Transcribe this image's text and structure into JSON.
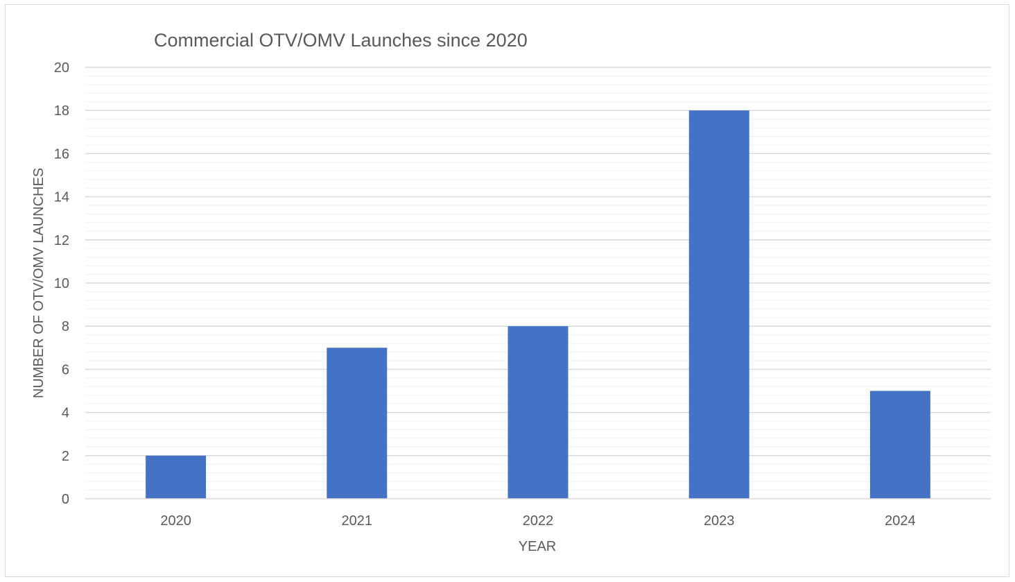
{
  "chart_data": {
    "type": "bar",
    "title": "Commercial OTV/OMV Launches since 2020",
    "xlabel": "YEAR",
    "ylabel": "NUMBER OF OTV/OMV LAUNCHES",
    "categories": [
      "2020",
      "2021",
      "2022",
      "2023",
      "2024"
    ],
    "values": [
      2,
      7,
      8,
      18,
      5
    ],
    "ylim": [
      0,
      20
    ],
    "yticks": [
      "0",
      "2",
      "4",
      "6",
      "8",
      "10",
      "12",
      "14",
      "16",
      "18",
      "20"
    ],
    "major_grid_step": 2,
    "minor_grid_step": 0.4,
    "grid": true,
    "legend": "none",
    "bar_color": "#4472C4",
    "major_grid_color": "#d9d9d9",
    "minor_grid_color": "#f0f0f0",
    "text_color": "#595959"
  }
}
